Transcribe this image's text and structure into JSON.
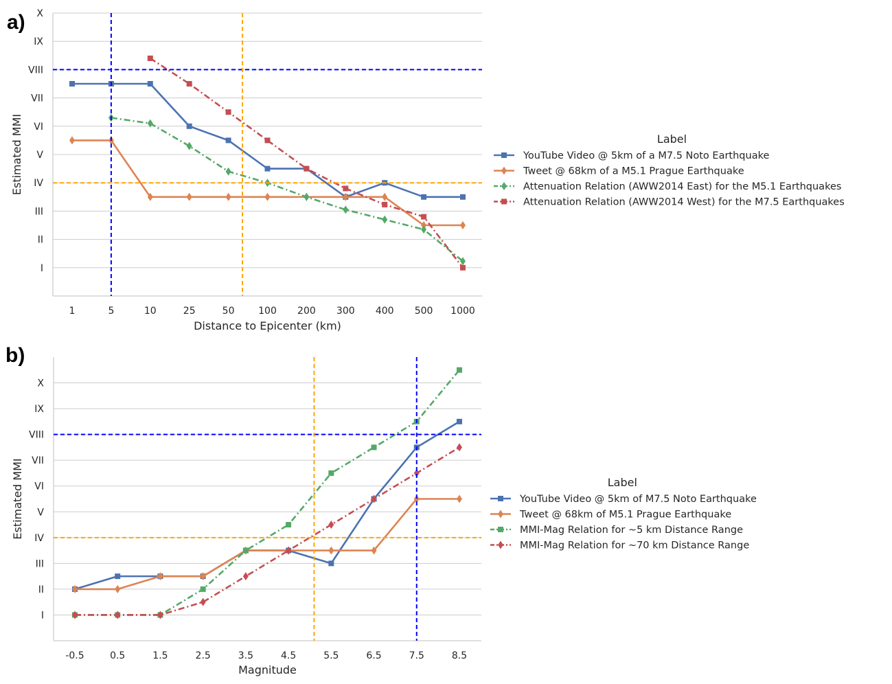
{
  "chart_data": [
    {
      "panel": "a)",
      "type": "line",
      "xlabel": "Distance to Epicenter (km)",
      "ylabel": "Estimated MMI",
      "categories": [
        "1",
        "5",
        "10",
        "25",
        "50",
        "100",
        "200",
        "300",
        "400",
        "500",
        "1000"
      ],
      "yticks": [
        {
          "v": 1,
          "label": "I"
        },
        {
          "v": 2,
          "label": "II"
        },
        {
          "v": 3,
          "label": "III"
        },
        {
          "v": 4,
          "label": "IV"
        },
        {
          "v": 5,
          "label": "V"
        },
        {
          "v": 6,
          "label": "VI"
        },
        {
          "v": 7,
          "label": "VII"
        },
        {
          "v": 8,
          "label": "VIII"
        },
        {
          "v": 9,
          "label": "IX"
        },
        {
          "v": 10,
          "label": "X"
        }
      ],
      "ylim": [
        0,
        10
      ],
      "grid": true,
      "legend_title": "Label",
      "legend_position": "right",
      "series": [
        {
          "name": "YouTube Video @ 5km of a M7.5 Noto Earthquake",
          "color": "#4c72b0",
          "dash": "solid",
          "marker": "square",
          "values": [
            7.5,
            7.5,
            7.5,
            6.0,
            5.5,
            4.5,
            4.5,
            3.5,
            4.0,
            3.5,
            3.5
          ]
        },
        {
          "name": "Tweet @ 68km of a M5.1 Prague Earthquake",
          "color": "#dd8452",
          "dash": "solid",
          "marker": "diamond",
          "values": [
            5.5,
            5.5,
            3.5,
            3.5,
            3.5,
            3.5,
            3.5,
            3.5,
            3.5,
            2.5,
            2.5
          ]
        },
        {
          "name": "Attenuation Relation (AWW2014 East) for the M5.1 Earthquakes",
          "color": "#55a868",
          "dash": "dashdot",
          "marker": "diamond",
          "values": [
            null,
            6.3,
            6.1,
            5.3,
            4.4,
            4.0,
            3.5,
            3.05,
            2.7,
            2.35,
            1.23
          ]
        },
        {
          "name": "Attenuation Relation (AWW2014 West) for the M7.5 Earthquakes",
          "color": "#c44e52",
          "dash": "dashdot",
          "marker": "square",
          "values": [
            null,
            null,
            8.4,
            7.5,
            6.5,
            5.5,
            4.5,
            3.8,
            3.23,
            2.8,
            1.0
          ]
        }
      ],
      "reference_lines": [
        {
          "axis": "y",
          "value": 8,
          "color": "#0000ff"
        },
        {
          "axis": "y",
          "value": 4,
          "color": "#ffa500"
        },
        {
          "axis": "x",
          "index": 1,
          "color": "#0000ff"
        },
        {
          "axis": "x",
          "index": 4.36,
          "color": "#ffa500"
        }
      ]
    },
    {
      "panel": "b)",
      "type": "line",
      "xlabel": "Magnitude",
      "ylabel": "Estimated MMI",
      "categories": [
        "-0.5",
        "0.5",
        "1.5",
        "2.5",
        "3.5",
        "4.5",
        "5.5",
        "6.5",
        "7.5",
        "8.5"
      ],
      "yticks": [
        {
          "v": 1,
          "label": "I"
        },
        {
          "v": 2,
          "label": "II"
        },
        {
          "v": 3,
          "label": "III"
        },
        {
          "v": 4,
          "label": "IV"
        },
        {
          "v": 5,
          "label": "V"
        },
        {
          "v": 6,
          "label": "VI"
        },
        {
          "v": 7,
          "label": "VII"
        },
        {
          "v": 8,
          "label": "VIII"
        },
        {
          "v": 9,
          "label": "IX"
        },
        {
          "v": 10,
          "label": "X"
        }
      ],
      "ylim": [
        0,
        11
      ],
      "grid": true,
      "legend_title": "Label",
      "legend_position": "right",
      "series": [
        {
          "name": "YouTube Video @ 5km of M7.5 Noto Earthquake",
          "color": "#4c72b0",
          "dash": "solid",
          "marker": "square",
          "values": [
            2.0,
            2.5,
            2.5,
            2.5,
            3.5,
            3.5,
            3.0,
            5.5,
            7.5,
            8.5
          ]
        },
        {
          "name": "Tweet @ 68km of M5.1 Prague Earthquake",
          "color": "#dd8452",
          "dash": "solid",
          "marker": "diamond",
          "values": [
            2.0,
            2.0,
            2.5,
            2.5,
            3.5,
            3.5,
            3.5,
            3.5,
            5.5,
            5.5
          ]
        },
        {
          "name": "MMI-Mag Relation for ~5 km Distance Range",
          "color": "#55a868",
          "dash": "dashdot",
          "marker": "square",
          "values": [
            1.0,
            1.0,
            1.0,
            2.0,
            3.5,
            4.5,
            6.5,
            7.5,
            8.5,
            10.5
          ]
        },
        {
          "name": "MMI-Mag Relation for ~70 km Distance Range",
          "color": "#c44e52",
          "dash": "dashdot",
          "marker": "diamond",
          "values": [
            1.0,
            1.0,
            1.0,
            1.5,
            2.5,
            3.5,
            4.5,
            5.5,
            6.5,
            7.5
          ]
        }
      ],
      "reference_lines": [
        {
          "axis": "y",
          "value": 8,
          "color": "#0000ff"
        },
        {
          "axis": "y",
          "value": 4,
          "color": "#ffa500"
        },
        {
          "axis": "x",
          "index": 8,
          "color": "#0000ff"
        },
        {
          "axis": "x",
          "index": 5.6,
          "color": "#ffa500"
        }
      ]
    }
  ]
}
